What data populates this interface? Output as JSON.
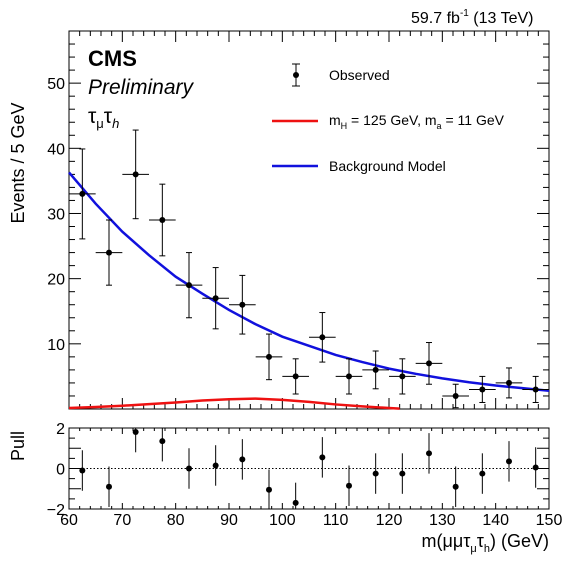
{
  "chart_data": {
    "type": "scatter",
    "header": {
      "lumi_value": "59.7 fb",
      "lumi_exponent": "-1",
      "energy": "(13 TeV)"
    },
    "labels": {
      "cms": "CMS",
      "preliminary": "Preliminary",
      "channel": {
        "tau1": "τ",
        "sub1": "μ",
        "tau2": "τ",
        "sub2": "h"
      }
    },
    "xlabel": {
      "prefix": "m(μμτ",
      "sub1": "μ",
      "mid": "τ",
      "sub2": "h",
      "suffix": ") (GeV)"
    },
    "ylabel": "Events / 5 GeV",
    "pull_ylabel": "Pull",
    "xlim": [
      60,
      150
    ],
    "ylim": [
      0,
      58
    ],
    "pull_ylim": [
      -2,
      2
    ],
    "x_ticks": [
      "60",
      "70",
      "80",
      "90",
      "100",
      "110",
      "120",
      "130",
      "140",
      "150"
    ],
    "y_ticks": [
      "10",
      "20",
      "30",
      "40",
      "50"
    ],
    "pull_ticks": [
      "2",
      "0",
      "−2"
    ],
    "legend": {
      "placement": "top-right",
      "observed": "Observed",
      "signal": {
        "m": "m",
        "h_sub": "H",
        "h_val": " = 125 GeV, m",
        "a_sub": "a",
        "a_val": " = 11 GeV"
      },
      "background": "Background Model"
    },
    "colors": {
      "signal": "#ee1111",
      "background": "#1111dd",
      "data": "#000000"
    },
    "bin_half_width": 2.5,
    "observed": {
      "x": [
        62.5,
        67.5,
        72.5,
        77.5,
        82.5,
        87.5,
        92.5,
        97.5,
        102.5,
        107.5,
        112.5,
        117.5,
        122.5,
        127.5,
        132.5,
        137.5,
        142.5,
        147.5
      ],
      "y": [
        33,
        24,
        36,
        29,
        19,
        17,
        16,
        8,
        5,
        11,
        5,
        6,
        5,
        7,
        2,
        3,
        4,
        3
      ],
      "err": [
        6.9,
        5.0,
        6.8,
        5.5,
        5.0,
        4.7,
        4.5,
        3.5,
        2.7,
        3.8,
        2.7,
        2.9,
        2.7,
        3.2,
        1.8,
        2.0,
        2.3,
        2.0
      ]
    },
    "background_curve": {
      "x": [
        60,
        65,
        70,
        75,
        80,
        85,
        90,
        95,
        100,
        105,
        110,
        115,
        120,
        125,
        130,
        135,
        140,
        145,
        150
      ],
      "y": [
        36.3,
        31.5,
        27.2,
        23.6,
        20.3,
        17.7,
        15.2,
        13.0,
        11.1,
        9.7,
        8.3,
        7.2,
        6.2,
        5.4,
        4.7,
        4.1,
        3.6,
        3.2,
        2.8
      ]
    },
    "signal_curve": {
      "x": [
        60,
        65,
        70,
        75,
        80,
        85,
        90,
        95,
        100,
        105,
        110,
        115,
        120,
        122
      ],
      "y": [
        0.15,
        0.3,
        0.5,
        0.75,
        1.0,
        1.3,
        1.5,
        1.6,
        1.4,
        1.1,
        0.7,
        0.4,
        0.15,
        0.05
      ]
    },
    "pulls": {
      "x": [
        62.5,
        67.5,
        72.5,
        77.5,
        82.5,
        87.5,
        92.5,
        97.5,
        102.5,
        107.5,
        112.5,
        117.5,
        122.5,
        127.5,
        132.5,
        137.5,
        142.5,
        147.5
      ],
      "y": [
        -0.1,
        -0.9,
        1.8,
        1.35,
        0.0,
        0.15,
        0.45,
        -1.05,
        -1.7,
        0.55,
        -0.85,
        -0.25,
        -0.25,
        0.75,
        -0.9,
        -0.25,
        0.35,
        0.05
      ],
      "err": [
        1.0,
        1.0,
        1.0,
        1.0,
        1.0,
        1.0,
        1.0,
        1.0,
        1.0,
        1.0,
        1.0,
        1.0,
        1.0,
        1.0,
        1.0,
        1.0,
        1.0,
        1.0
      ]
    }
  }
}
